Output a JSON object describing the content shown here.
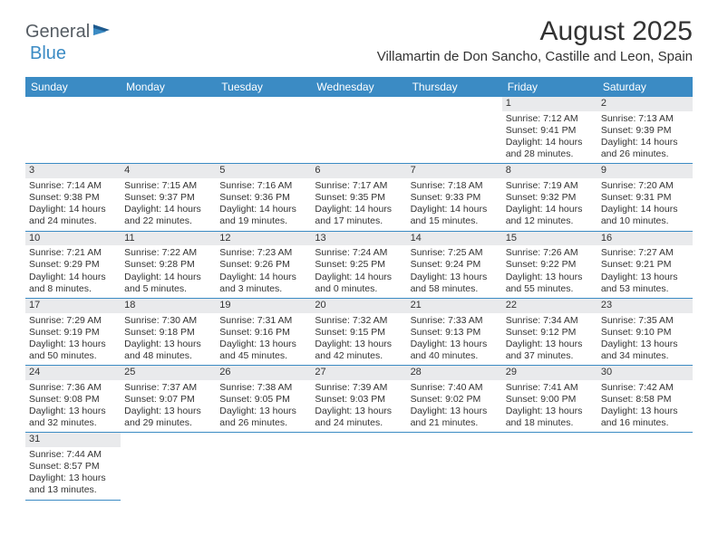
{
  "logo": {
    "part1": "General",
    "part2": "Blue"
  },
  "title": "August 2025",
  "location": "Villamartin de Don Sancho, Castille and Leon, Spain",
  "colors": {
    "headerBar": "#3b8bc4",
    "dayNumBg": "#e9eaec",
    "text": "#333333",
    "rowBorder": "#3b8bc4"
  },
  "dayNames": [
    "Sunday",
    "Monday",
    "Tuesday",
    "Wednesday",
    "Thursday",
    "Friday",
    "Saturday"
  ],
  "weeks": [
    [
      {
        "blank": true
      },
      {
        "blank": true
      },
      {
        "blank": true
      },
      {
        "blank": true
      },
      {
        "blank": true
      },
      {
        "day": "1",
        "sunrise": "Sunrise: 7:12 AM",
        "sunset": "Sunset: 9:41 PM",
        "dl1": "Daylight: 14 hours",
        "dl2": "and 28 minutes."
      },
      {
        "day": "2",
        "sunrise": "Sunrise: 7:13 AM",
        "sunset": "Sunset: 9:39 PM",
        "dl1": "Daylight: 14 hours",
        "dl2": "and 26 minutes."
      }
    ],
    [
      {
        "day": "3",
        "sunrise": "Sunrise: 7:14 AM",
        "sunset": "Sunset: 9:38 PM",
        "dl1": "Daylight: 14 hours",
        "dl2": "and 24 minutes."
      },
      {
        "day": "4",
        "sunrise": "Sunrise: 7:15 AM",
        "sunset": "Sunset: 9:37 PM",
        "dl1": "Daylight: 14 hours",
        "dl2": "and 22 minutes."
      },
      {
        "day": "5",
        "sunrise": "Sunrise: 7:16 AM",
        "sunset": "Sunset: 9:36 PM",
        "dl1": "Daylight: 14 hours",
        "dl2": "and 19 minutes."
      },
      {
        "day": "6",
        "sunrise": "Sunrise: 7:17 AM",
        "sunset": "Sunset: 9:35 PM",
        "dl1": "Daylight: 14 hours",
        "dl2": "and 17 minutes."
      },
      {
        "day": "7",
        "sunrise": "Sunrise: 7:18 AM",
        "sunset": "Sunset: 9:33 PM",
        "dl1": "Daylight: 14 hours",
        "dl2": "and 15 minutes."
      },
      {
        "day": "8",
        "sunrise": "Sunrise: 7:19 AM",
        "sunset": "Sunset: 9:32 PM",
        "dl1": "Daylight: 14 hours",
        "dl2": "and 12 minutes."
      },
      {
        "day": "9",
        "sunrise": "Sunrise: 7:20 AM",
        "sunset": "Sunset: 9:31 PM",
        "dl1": "Daylight: 14 hours",
        "dl2": "and 10 minutes."
      }
    ],
    [
      {
        "day": "10",
        "sunrise": "Sunrise: 7:21 AM",
        "sunset": "Sunset: 9:29 PM",
        "dl1": "Daylight: 14 hours",
        "dl2": "and 8 minutes."
      },
      {
        "day": "11",
        "sunrise": "Sunrise: 7:22 AM",
        "sunset": "Sunset: 9:28 PM",
        "dl1": "Daylight: 14 hours",
        "dl2": "and 5 minutes."
      },
      {
        "day": "12",
        "sunrise": "Sunrise: 7:23 AM",
        "sunset": "Sunset: 9:26 PM",
        "dl1": "Daylight: 14 hours",
        "dl2": "and 3 minutes."
      },
      {
        "day": "13",
        "sunrise": "Sunrise: 7:24 AM",
        "sunset": "Sunset: 9:25 PM",
        "dl1": "Daylight: 14 hours",
        "dl2": "and 0 minutes."
      },
      {
        "day": "14",
        "sunrise": "Sunrise: 7:25 AM",
        "sunset": "Sunset: 9:24 PM",
        "dl1": "Daylight: 13 hours",
        "dl2": "and 58 minutes."
      },
      {
        "day": "15",
        "sunrise": "Sunrise: 7:26 AM",
        "sunset": "Sunset: 9:22 PM",
        "dl1": "Daylight: 13 hours",
        "dl2": "and 55 minutes."
      },
      {
        "day": "16",
        "sunrise": "Sunrise: 7:27 AM",
        "sunset": "Sunset: 9:21 PM",
        "dl1": "Daylight: 13 hours",
        "dl2": "and 53 minutes."
      }
    ],
    [
      {
        "day": "17",
        "sunrise": "Sunrise: 7:29 AM",
        "sunset": "Sunset: 9:19 PM",
        "dl1": "Daylight: 13 hours",
        "dl2": "and 50 minutes."
      },
      {
        "day": "18",
        "sunrise": "Sunrise: 7:30 AM",
        "sunset": "Sunset: 9:18 PM",
        "dl1": "Daylight: 13 hours",
        "dl2": "and 48 minutes."
      },
      {
        "day": "19",
        "sunrise": "Sunrise: 7:31 AM",
        "sunset": "Sunset: 9:16 PM",
        "dl1": "Daylight: 13 hours",
        "dl2": "and 45 minutes."
      },
      {
        "day": "20",
        "sunrise": "Sunrise: 7:32 AM",
        "sunset": "Sunset: 9:15 PM",
        "dl1": "Daylight: 13 hours",
        "dl2": "and 42 minutes."
      },
      {
        "day": "21",
        "sunrise": "Sunrise: 7:33 AM",
        "sunset": "Sunset: 9:13 PM",
        "dl1": "Daylight: 13 hours",
        "dl2": "and 40 minutes."
      },
      {
        "day": "22",
        "sunrise": "Sunrise: 7:34 AM",
        "sunset": "Sunset: 9:12 PM",
        "dl1": "Daylight: 13 hours",
        "dl2": "and 37 minutes."
      },
      {
        "day": "23",
        "sunrise": "Sunrise: 7:35 AM",
        "sunset": "Sunset: 9:10 PM",
        "dl1": "Daylight: 13 hours",
        "dl2": "and 34 minutes."
      }
    ],
    [
      {
        "day": "24",
        "sunrise": "Sunrise: 7:36 AM",
        "sunset": "Sunset: 9:08 PM",
        "dl1": "Daylight: 13 hours",
        "dl2": "and 32 minutes."
      },
      {
        "day": "25",
        "sunrise": "Sunrise: 7:37 AM",
        "sunset": "Sunset: 9:07 PM",
        "dl1": "Daylight: 13 hours",
        "dl2": "and 29 minutes."
      },
      {
        "day": "26",
        "sunrise": "Sunrise: 7:38 AM",
        "sunset": "Sunset: 9:05 PM",
        "dl1": "Daylight: 13 hours",
        "dl2": "and 26 minutes."
      },
      {
        "day": "27",
        "sunrise": "Sunrise: 7:39 AM",
        "sunset": "Sunset: 9:03 PM",
        "dl1": "Daylight: 13 hours",
        "dl2": "and 24 minutes."
      },
      {
        "day": "28",
        "sunrise": "Sunrise: 7:40 AM",
        "sunset": "Sunset: 9:02 PM",
        "dl1": "Daylight: 13 hours",
        "dl2": "and 21 minutes."
      },
      {
        "day": "29",
        "sunrise": "Sunrise: 7:41 AM",
        "sunset": "Sunset: 9:00 PM",
        "dl1": "Daylight: 13 hours",
        "dl2": "and 18 minutes."
      },
      {
        "day": "30",
        "sunrise": "Sunrise: 7:42 AM",
        "sunset": "Sunset: 8:58 PM",
        "dl1": "Daylight: 13 hours",
        "dl2": "and 16 minutes."
      }
    ],
    [
      {
        "day": "31",
        "sunrise": "Sunrise: 7:44 AM",
        "sunset": "Sunset: 8:57 PM",
        "dl1": "Daylight: 13 hours",
        "dl2": "and 13 minutes."
      },
      {
        "blank": true,
        "noborder": true
      },
      {
        "blank": true,
        "noborder": true
      },
      {
        "blank": true,
        "noborder": true
      },
      {
        "blank": true,
        "noborder": true
      },
      {
        "blank": true,
        "noborder": true
      },
      {
        "blank": true,
        "noborder": true
      }
    ]
  ]
}
